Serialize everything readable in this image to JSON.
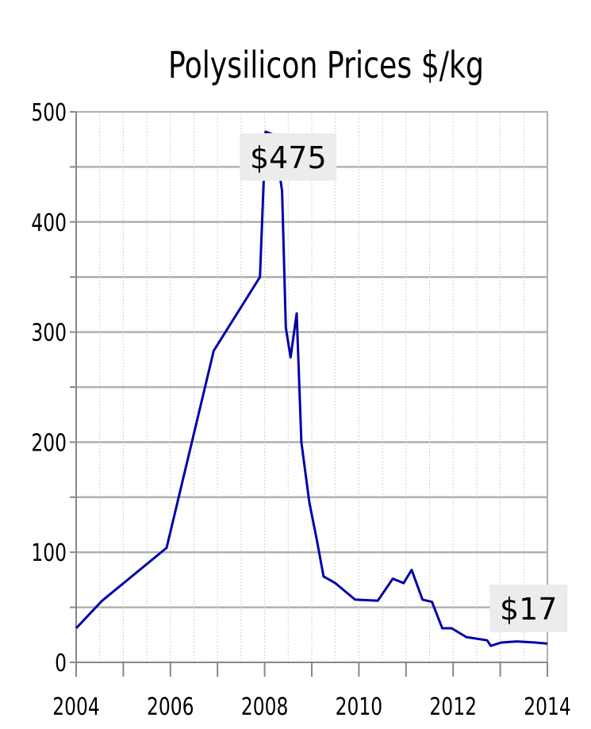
{
  "chart_data": {
    "type": "line",
    "title": "Polysilicon Prices $/kg",
    "xlabel": "",
    "ylabel": "",
    "xlim": [
      2004,
      2014
    ],
    "ylim": [
      0,
      500
    ],
    "x_ticks": [
      "2004",
      "2006",
      "2008",
      "2010",
      "2012",
      "2014"
    ],
    "y_ticks": [
      "0",
      "100",
      "200",
      "300",
      "400",
      "500"
    ],
    "grid": true,
    "line_color": "#0000aa",
    "series": [
      {
        "x": [
          2004.0,
          2004.55,
          2005.92,
          2006.92,
          2007.9,
          2008.02,
          2008.2,
          2008.37,
          2008.45,
          2008.55,
          2008.68,
          2008.78,
          2008.95,
          2009.1,
          2009.25,
          2009.5,
          2009.92,
          2010.4,
          2010.72,
          2010.95,
          2011.12,
          2011.35,
          2011.55,
          2011.77,
          2011.97,
          2012.28,
          2012.72,
          2012.8,
          2013.02,
          2013.35,
          2013.75,
          2014.0
        ],
        "y": [
          31,
          56,
          104,
          283,
          350,
          482,
          479,
          428,
          304,
          277,
          317,
          200,
          145,
          113,
          78,
          72,
          57,
          56,
          76,
          72,
          84,
          57,
          55,
          31,
          31,
          23,
          20,
          15,
          18,
          19,
          18,
          17
        ]
      }
    ],
    "annotations": [
      {
        "text": "$475",
        "x": 2008.5,
        "y": 459
      },
      {
        "text": "$17",
        "x": 2013.6,
        "y": 49
      }
    ]
  }
}
